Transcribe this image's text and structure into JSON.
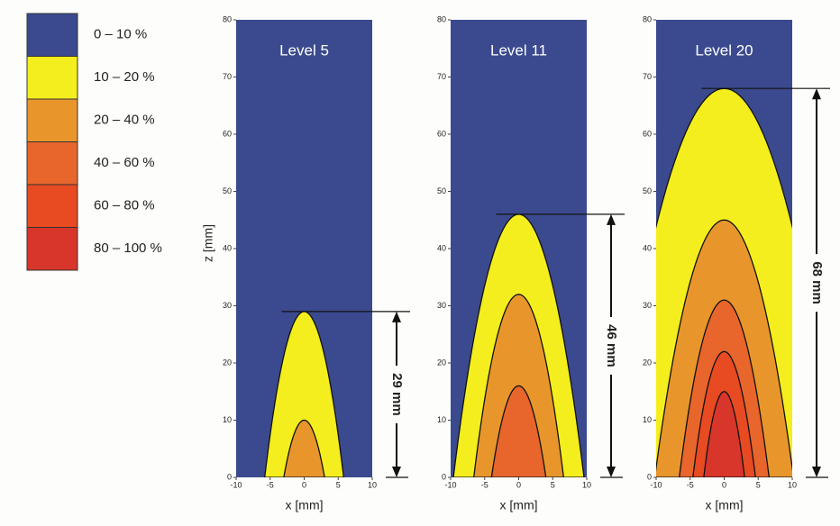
{
  "legend": {
    "items": [
      {
        "label": "0 – 10 %",
        "color": "#3b4a8e"
      },
      {
        "label": "10 – 20 %",
        "color": "#f4ee1e"
      },
      {
        "label": "20 – 40 %",
        "color": "#e8962c"
      },
      {
        "label": "40 – 60 %",
        "color": "#e8652c"
      },
      {
        "label": "60 – 80 %",
        "color": "#e84a22"
      },
      {
        "label": "80 – 100 %",
        "color": "#d8362a"
      }
    ]
  },
  "chart_data": [
    {
      "type": "contour",
      "title": "Level 5",
      "x_label": "x [mm]",
      "y_label": "z [mm]",
      "xlim": [
        -10,
        10
      ],
      "ylim": [
        0,
        80
      ],
      "xticks": [
        -10,
        -5,
        0,
        5,
        10
      ],
      "yticks": [
        0,
        10,
        20,
        30,
        40,
        50,
        60,
        70,
        80
      ],
      "background": "#3b4a8e",
      "contours": [
        {
          "color": "#f4ee1e",
          "peak": 29,
          "half_width": 5.8
        },
        {
          "color": "#e8962c",
          "peak": 10,
          "half_width": 3
        }
      ],
      "dimension": {
        "value": 29,
        "label": "29 mm"
      }
    },
    {
      "type": "contour",
      "title": "Level 11",
      "x_label": "x [mm]",
      "xlim": [
        -10,
        10
      ],
      "ylim": [
        0,
        80
      ],
      "xticks": [
        -10,
        -5,
        0,
        5,
        10
      ],
      "yticks": [
        0,
        10,
        20,
        30,
        40,
        50,
        60,
        70,
        80
      ],
      "background": "#3b4a8e",
      "contours": [
        {
          "color": "#f4ee1e",
          "peak": 46,
          "half_width": 9.6
        },
        {
          "color": "#e8962c",
          "peak": 32,
          "half_width": 6.6
        },
        {
          "color": "#e8652c",
          "peak": 16,
          "half_width": 4
        }
      ],
      "dimension": {
        "value": 46,
        "label": "46 mm"
      }
    },
    {
      "type": "contour",
      "title": "Level 20",
      "x_label": "x [mm]",
      "xlim": [
        -10,
        10
      ],
      "ylim": [
        0,
        80
      ],
      "xticks": [
        -10,
        -5,
        0,
        5,
        10
      ],
      "yticks": [
        0,
        10,
        20,
        30,
        40,
        50,
        60,
        70,
        80
      ],
      "background": "#3b4a8e",
      "contours": [
        {
          "color": "#f4ee1e",
          "peak": 68,
          "half_width": 16.8
        },
        {
          "color": "#e8962c",
          "peak": 45,
          "half_width": 10.2
        },
        {
          "color": "#e8652c",
          "peak": 31,
          "half_width": 6.6
        },
        {
          "color": "#e84a22",
          "peak": 22,
          "half_width": 4.6
        },
        {
          "color": "#d8362a",
          "peak": 15,
          "half_width": 3
        }
      ],
      "dimension": {
        "value": 68,
        "label": "68 mm"
      }
    }
  ]
}
